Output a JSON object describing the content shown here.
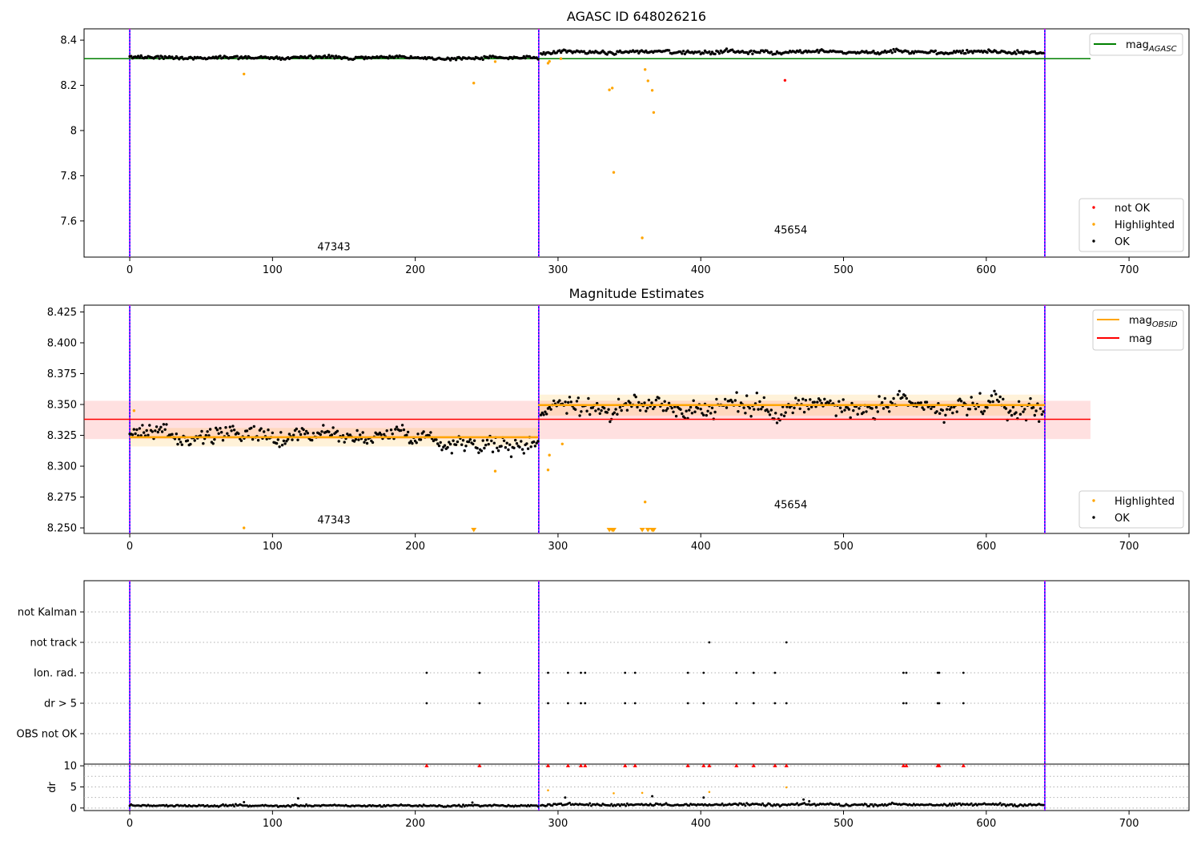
{
  "figure": {
    "title": "AGASC ID 648026216"
  },
  "chart_data": [
    {
      "type": "scatter",
      "title": "AGASC ID 648026216",
      "xlabel": "",
      "ylabel": "",
      "xlim": [
        -32,
        742
      ],
      "ylim": [
        7.44,
        8.45
      ],
      "x_ticks": [
        0,
        100,
        200,
        300,
        400,
        500,
        600,
        700
      ],
      "y_ticks": [
        7.6,
        7.8,
        8.0,
        8.2,
        8.4
      ],
      "grid": false,
      "legend_upper": {
        "placement": "top-right",
        "entries": [
          {
            "label": "mag",
            "sub": "AGASC",
            "color": "#008000"
          }
        ]
      },
      "legend_lower": {
        "placement": "bottom-right",
        "entries": [
          {
            "label": "not OK",
            "color": "#ff0000"
          },
          {
            "label": "Highlighted",
            "color": "#ffa500"
          },
          {
            "label": "OK",
            "color": "#000000"
          }
        ]
      },
      "annotations": [
        {
          "text": "47343",
          "x": 143,
          "y": 7.47
        },
        {
          "text": "45654",
          "x": 463,
          "y": 7.545
        }
      ],
      "vlines": [
        0,
        286.5,
        641
      ],
      "hline": {
        "y": 8.318,
        "x0": -32,
        "x1": 673,
        "color": "#008000"
      },
      "series": [
        {
          "name": "OK",
          "color": "#000000",
          "segments": [
            {
              "x0": 0,
              "x1": 286,
              "n": 290,
              "base": 8.323,
              "amp": 0.008,
              "dip": {
                "center": 230,
                "width": 40,
                "depth": -0.004
              }
            },
            {
              "x0": 288,
              "x1": 640,
              "n": 350,
              "base": 8.348,
              "amp": 0.01,
              "dip": null
            }
          ]
        },
        {
          "name": "Highlighted",
          "color": "#ffa500",
          "points": [
            [
              80,
              8.25
            ],
            [
              241,
              8.21
            ],
            [
              256,
              8.305
            ],
            [
              293,
              8.298
            ],
            [
              294,
              8.306
            ],
            [
              302,
              8.318
            ],
            [
              336,
              8.18
            ],
            [
              338,
              8.188
            ],
            [
              339,
              7.815
            ],
            [
              359,
              7.525
            ],
            [
              361,
              8.27
            ],
            [
              363,
              8.22
            ],
            [
              366,
              8.178
            ],
            [
              367,
              8.08
            ]
          ]
        },
        {
          "name": "not OK",
          "color": "#ff0000",
          "points": [
            [
              459,
              8.222
            ]
          ]
        }
      ]
    },
    {
      "type": "scatter",
      "title": "Magnitude Estimates",
      "xlabel": "",
      "ylabel": "",
      "xlim": [
        -32,
        742
      ],
      "ylim": [
        8.2455,
        8.4305
      ],
      "x_ticks": [
        0,
        100,
        200,
        300,
        400,
        500,
        600,
        700
      ],
      "y_ticks": [
        8.25,
        8.275,
        8.3,
        8.325,
        8.35,
        8.375,
        8.4,
        8.425
      ],
      "y_tick_labels": [
        "8.250",
        "8.275",
        "8.300",
        "8.325",
        "8.350",
        "8.375",
        "8.400",
        "8.425"
      ],
      "grid": false,
      "legend_upper": {
        "placement": "top-right",
        "entries": [
          {
            "label": "mag",
            "sub": "OBSID",
            "color": "#ffa500"
          },
          {
            "label": "mag",
            "sub": "",
            "color": "#ff0000"
          }
        ]
      },
      "legend_lower": {
        "placement": "bottom-right",
        "entries": [
          {
            "label": "Highlighted",
            "color": "#ffa500"
          },
          {
            "label": "OK",
            "color": "#000000"
          }
        ]
      },
      "annotations": [
        {
          "text": "47343",
          "x": 143,
          "y": 8.2535
        },
        {
          "text": "45654",
          "x": 463,
          "y": 8.266
        }
      ],
      "vlines": [
        0,
        286.5,
        641
      ],
      "mag_band": {
        "y": 8.338,
        "lo": 8.322,
        "hi": 8.353,
        "x0": -32,
        "x1": 673
      },
      "obsid_levels": [
        {
          "x0": 0,
          "x1": 286,
          "y": 8.3235,
          "lo": 8.316,
          "hi": 8.331
        },
        {
          "x0": 286,
          "x1": 641,
          "y": 8.3495,
          "lo": 8.341,
          "hi": 8.358
        }
      ],
      "series": [
        {
          "name": "OK",
          "color": "#000000",
          "segments": [
            {
              "x0": 0,
              "x1": 286,
              "n": 290,
              "base": 8.325,
              "amp": 0.008,
              "dip": {
                "center": 255,
                "width": 55,
                "depth": -0.01
              }
            },
            {
              "x0": 288,
              "x1": 640,
              "n": 350,
              "base": 8.348,
              "amp": 0.01,
              "dip": null
            }
          ]
        },
        {
          "name": "Highlighted",
          "color": "#ffa500",
          "points": [
            [
              3,
              8.345
            ],
            [
              80,
              8.25
            ],
            [
              256,
              8.296
            ],
            [
              293,
              8.297
            ],
            [
              294,
              8.309
            ],
            [
              303,
              8.318
            ],
            [
              361,
              8.271
            ]
          ],
          "offscale_x": [
            241,
            336,
            338,
            339,
            359,
            363,
            366,
            367
          ]
        }
      ]
    },
    {
      "type": "scatter",
      "title": "",
      "xlabel": "",
      "ylabel": "",
      "categories": [
        "OBS not OK",
        "dr > 5",
        "Ion. rad.",
        "not track",
        "not Kalman"
      ],
      "xlim": [
        -32,
        742
      ],
      "vlines": [
        0,
        286.5,
        641
      ],
      "grid": "y",
      "series": [
        {
          "name": "not track",
          "color": "#000000",
          "x": [
            406,
            460
          ]
        },
        {
          "name": "Ion. rad.",
          "color": "#000000",
          "x": [
            208,
            245,
            293,
            307,
            316,
            319,
            347,
            354,
            391,
            402,
            425,
            437,
            452,
            542,
            544,
            566,
            567,
            584
          ]
        },
        {
          "name": "dr > 5",
          "color": "#000000",
          "x": [
            208,
            245,
            293,
            307,
            316,
            319,
            347,
            354,
            391,
            402,
            425,
            437,
            452,
            460,
            542,
            544,
            566,
            567,
            584
          ]
        }
      ]
    },
    {
      "type": "scatter",
      "title": "",
      "xlabel": "",
      "ylabel": "dr",
      "xlim": [
        -32,
        742
      ],
      "ylim": [
        -0.6,
        10.4
      ],
      "x_ticks": [
        0,
        100,
        200,
        300,
        400,
        500,
        600,
        700
      ],
      "y_ticks": [
        0,
        5,
        10
      ],
      "grid": "y",
      "vlines": [
        0,
        286.5,
        641
      ],
      "series": [
        {
          "name": "OK",
          "color": "#000000",
          "segments": [
            {
              "x0": 0,
              "x1": 286,
              "n": 290,
              "base": 0.55,
              "amp": 0.25,
              "dip": null
            },
            {
              "x0": 288,
              "x1": 640,
              "n": 350,
              "base": 0.8,
              "amp": 0.35,
              "dip": null
            }
          ],
          "extra": [
            [
              80,
              1.4
            ],
            [
              118,
              2.3
            ],
            [
              240,
              1.3
            ],
            [
              305,
              2.5
            ],
            [
              366,
              2.8
            ],
            [
              402,
              2.5
            ],
            [
              472,
              2.0
            ],
            [
              476,
              1.6
            ]
          ]
        },
        {
          "name": "Highlighted",
          "color": "#ffa500",
          "points": [
            [
              293,
              4.2
            ],
            [
              339,
              3.5
            ],
            [
              359,
              3.6
            ],
            [
              406,
              3.8
            ],
            [
              460,
              4.9
            ]
          ]
        },
        {
          "name": "not OK",
          "color": "#ff0000",
          "marker": "triangle",
          "x": [
            208,
            245,
            293,
            307,
            316,
            319,
            347,
            354,
            391,
            402,
            406,
            425,
            437,
            452,
            460,
            542,
            544,
            566,
            567,
            584
          ],
          "y": 10
        }
      ]
    }
  ]
}
